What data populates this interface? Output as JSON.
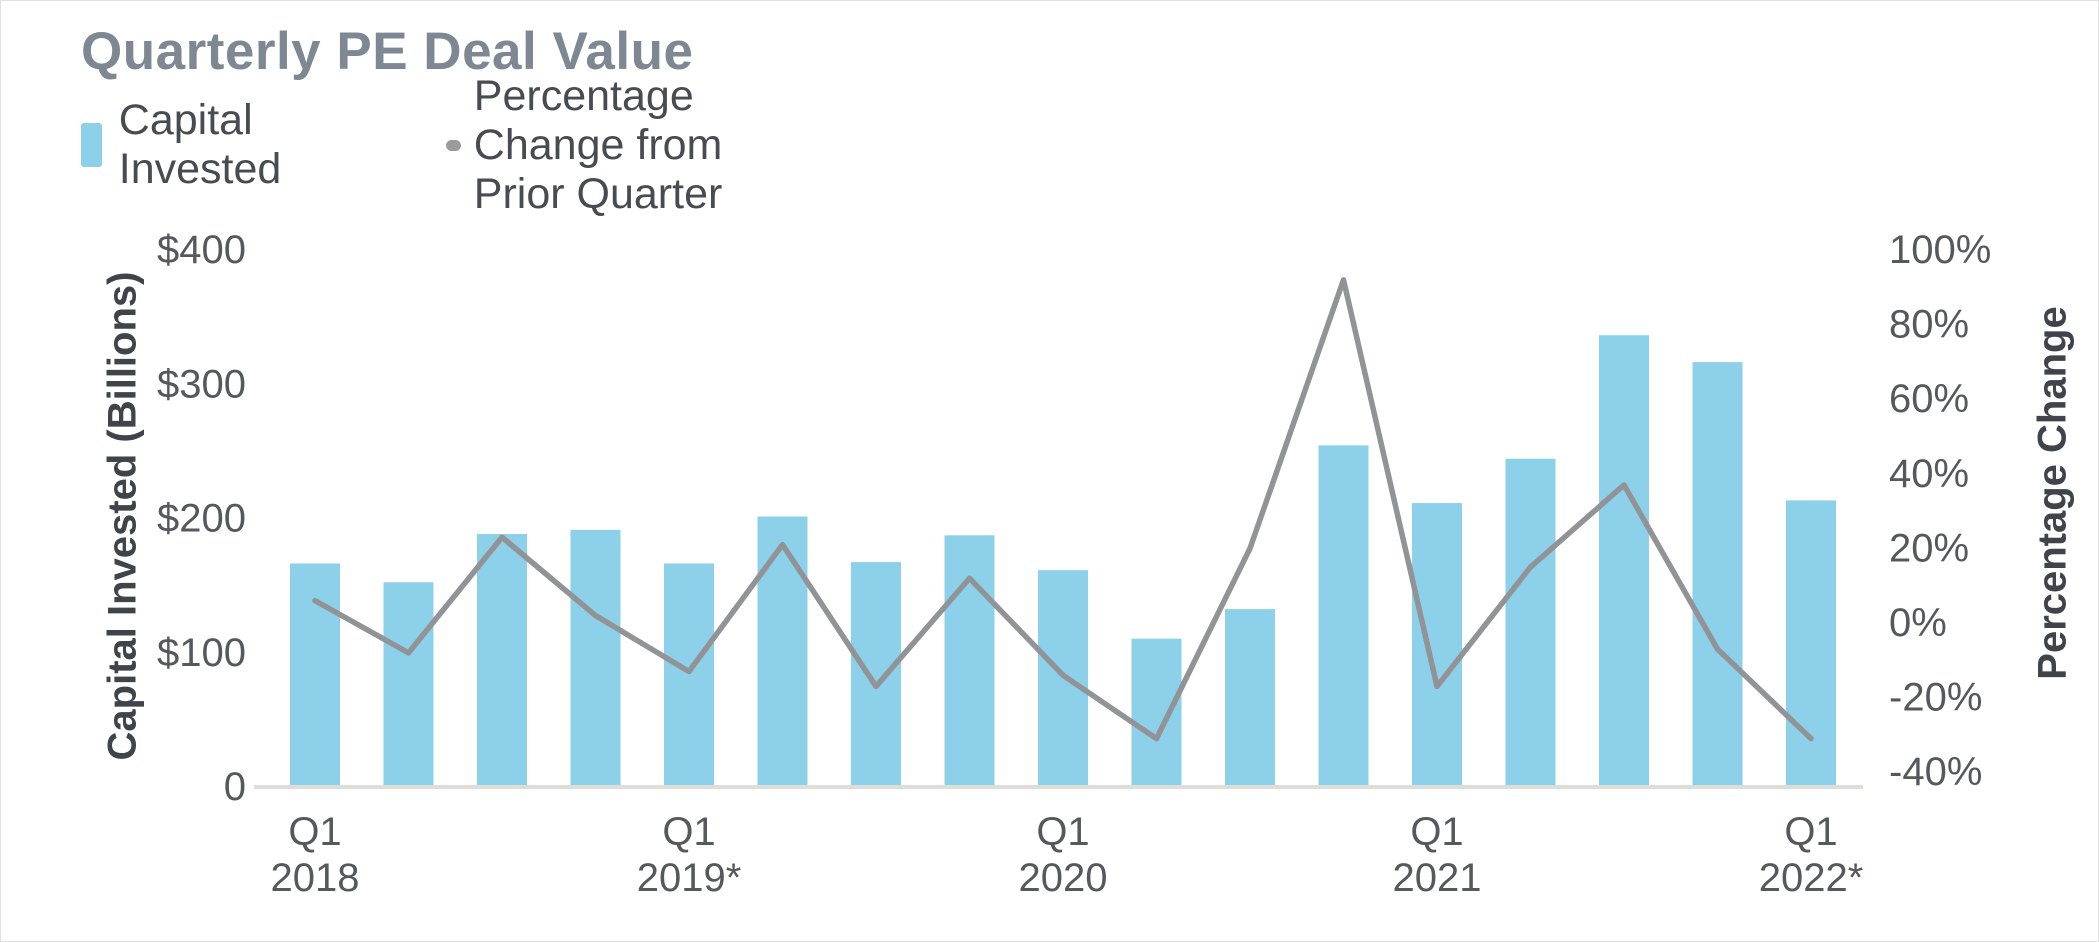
{
  "title": "Quarterly PE Deal Value",
  "legend": {
    "bar_label": "Capital Invested",
    "line_label": "Percentage Change from Prior Quarter"
  },
  "left_axis": {
    "title": "Capital Invested (Billions)",
    "ticks": [
      {
        "label": "$400",
        "value": 400
      },
      {
        "label": "$300",
        "value": 300
      },
      {
        "label": "$200",
        "value": 200
      },
      {
        "label": "$100",
        "value": 100
      },
      {
        "label": "0",
        "value": 0
      }
    ],
    "range": [
      0,
      400
    ]
  },
  "right_axis": {
    "title": "Percentage Change",
    "ticks": [
      {
        "label": "100%",
        "value": 100
      },
      {
        "label": "80%",
        "value": 80
      },
      {
        "label": "60%",
        "value": 60
      },
      {
        "label": "40%",
        "value": 40
      },
      {
        "label": "20%",
        "value": 20
      },
      {
        "label": "0%",
        "value": 0
      },
      {
        "label": "-20%",
        "value": -20
      },
      {
        "label": "-40%",
        "value": -40
      }
    ]
  },
  "x_axis": {
    "labels": [
      {
        "line1": "Q1",
        "line2": "2018",
        "index": 0
      },
      {
        "line1": "Q1",
        "line2": "2019*",
        "index": 4
      },
      {
        "line1": "Q1",
        "line2": "2020",
        "index": 8
      },
      {
        "line1": "Q1",
        "line2": "2021",
        "index": 12
      },
      {
        "line1": "Q1",
        "line2": "2022*",
        "index": 16
      }
    ]
  },
  "colors": {
    "bar": "#8cd0ea",
    "line": "#919396",
    "title_text": "#7d8893",
    "tick_text": "#55585d",
    "axis_title_text": "#3f444a",
    "legend_text": "#474c52",
    "baseline": "#dcded7"
  },
  "chart_data": {
    "type": "bar",
    "subtype": "bar+line dual-axis combo",
    "title": "Quarterly PE Deal Value",
    "categories": [
      "Q1 2018",
      "Q2 2018",
      "Q3 2018",
      "Q4 2018",
      "Q1 2019",
      "Q2 2019",
      "Q3 2019",
      "Q4 2019",
      "Q1 2020",
      "Q2 2020",
      "Q3 2020",
      "Q4 2020",
      "Q1 2021",
      "Q2 2021",
      "Q3 2021",
      "Q4 2021",
      "Q1 2022"
    ],
    "series": [
      {
        "name": "Capital Invested",
        "type": "bar",
        "axis": "left",
        "unit": "USD billions",
        "values": [
          165,
          151,
          187,
          190,
          165,
          200,
          166,
          186,
          160,
          109,
          131,
          253,
          210,
          243,
          335,
          315,
          212
        ]
      },
      {
        "name": "Percentage Change from Prior Quarter",
        "type": "line",
        "axis": "right",
        "unit": "percent",
        "values": [
          6,
          -8,
          23,
          2,
          -13,
          21,
          -17,
          12,
          -14,
          -31,
          20,
          92,
          -17,
          15,
          37,
          -7,
          -31
        ]
      }
    ],
    "left_ylabel": "Capital Invested (Billions)",
    "right_ylabel": "Percentage Change",
    "left_ylim": [
      0,
      400
    ],
    "right_ylim": [
      -43.5,
      100
    ],
    "grid": false,
    "legend_position": "top-left",
    "notes": "Left $400 gridline aligns with right 100%; x tick labels shown only at each Q1; asterisk on 2019 and 2022 labels"
  }
}
